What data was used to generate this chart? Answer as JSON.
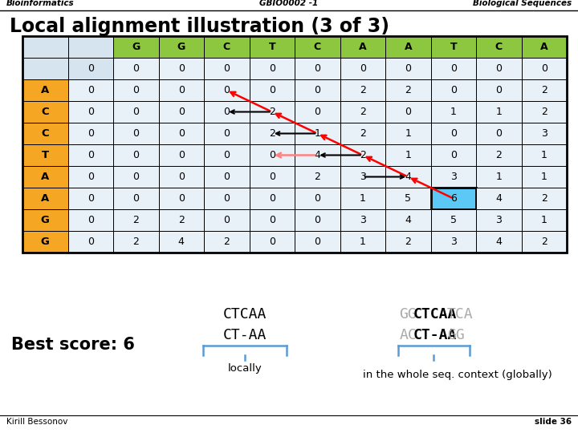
{
  "header_left": "Bioinformatics",
  "header_center": "GBIO0002 -1",
  "header_right": "Biological Sequences",
  "title": "Local alignment illustration (3 of 3)",
  "col_seq": [
    "G",
    "G",
    "C",
    "T",
    "C",
    "A",
    "A",
    "T",
    "C",
    "A"
  ],
  "row_seq": [
    "A",
    "C",
    "C",
    "T",
    "A",
    "A",
    "G",
    "G"
  ],
  "matrix_clean": [
    [
      0,
      0,
      0,
      0,
      0,
      0,
      0,
      0,
      0,
      0,
      0
    ],
    [
      0,
      0,
      0,
      0,
      0,
      0,
      2,
      2,
      0,
      0,
      2
    ],
    [
      0,
      0,
      0,
      0,
      2,
      0,
      2,
      0,
      1,
      1,
      2
    ],
    [
      0,
      0,
      0,
      0,
      2,
      1,
      2,
      1,
      0,
      0,
      3
    ],
    [
      0,
      0,
      0,
      0,
      0,
      4,
      2,
      1,
      0,
      2,
      1
    ],
    [
      0,
      0,
      0,
      0,
      0,
      2,
      3,
      4,
      3,
      1,
      1
    ],
    [
      0,
      0,
      0,
      0,
      0,
      0,
      1,
      5,
      6,
      4,
      2
    ],
    [
      0,
      2,
      2,
      0,
      0,
      0,
      3,
      4,
      5,
      3,
      1
    ],
    [
      0,
      2,
      4,
      2,
      0,
      0,
      1,
      2,
      3,
      4,
      2
    ]
  ],
  "col_header_color": "#8DC63F",
  "row_header_color": "#F5A623",
  "cell_color_light": "#D6E4F0",
  "cell_color_data": "#E8F0F8",
  "highlight_color": "#5BC8F5",
  "footer_left": "Kirill Bessonov",
  "footer_right": "slide 36",
  "best_score": "Best score: 6"
}
